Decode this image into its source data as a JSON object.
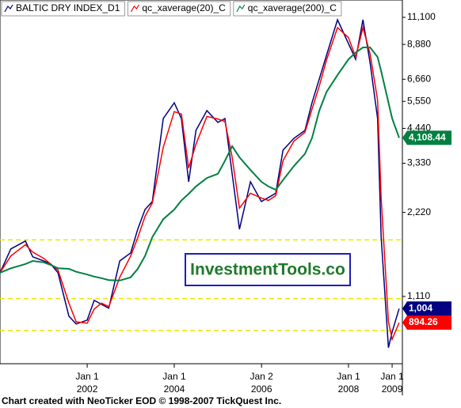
{
  "chart_data": {
    "type": "line",
    "x": [
      "2000-01",
      "2000-04",
      "2000-08",
      "2000-10",
      "2001-01",
      "2001-03",
      "2001-05",
      "2001-08",
      "2001-10",
      "2002-01",
      "2002-03",
      "2002-05",
      "2002-07",
      "2002-10",
      "2003-01",
      "2003-03",
      "2003-05",
      "2003-07",
      "2003-10",
      "2004-01",
      "2004-03",
      "2004-05",
      "2004-07",
      "2004-10",
      "2005-01",
      "2005-03",
      "2005-05",
      "2005-07",
      "2005-10",
      "2006-01",
      "2006-03",
      "2006-05",
      "2006-07",
      "2006-10",
      "2007-01",
      "2007-03",
      "2007-05",
      "2007-07",
      "2007-10",
      "2008-01",
      "2008-03",
      "2008-05",
      "2008-07",
      "2008-09",
      "2008-10",
      "2008-12",
      "2009-01",
      "2009-03"
    ],
    "series": [
      {
        "name": "BALTIC DRY INDEX_D1",
        "color": "#000080",
        "label_color": "#ffffff",
        "values": [
          1350,
          1643,
          1753,
          1539,
          1488,
          1450,
          1350,
          943,
          884,
          913,
          1075,
          1040,
          1007,
          1488,
          1590,
          1932,
          2273,
          2429,
          4818,
          5487,
          4818,
          2858,
          4368,
          5143,
          4665,
          4818,
          3053,
          1932,
          2858,
          2429,
          2510,
          2600,
          3710,
          4093,
          4368,
          5487,
          6674,
          8116,
          10880,
          8950,
          7855,
          10880,
          7608,
          4818,
          1810,
          727,
          828,
          1004
        ],
        "value_labels": [
          null,
          null,
          null,
          null,
          null,
          null,
          null,
          null,
          null,
          null,
          null,
          null,
          null,
          null,
          null,
          null,
          null,
          null,
          null,
          null,
          null,
          null,
          null,
          null,
          null,
          null,
          null,
          null,
          null,
          null,
          null,
          null,
          null,
          null,
          null,
          null,
          null,
          null,
          null,
          null,
          null,
          null,
          null,
          null,
          null,
          null,
          null,
          "1,004"
        ]
      },
      {
        "name": "qc_xaverage(20)_C",
        "color": "#ff0000",
        "label_color": "#ffffff",
        "values": [
          1350,
          1550,
          1700,
          1600,
          1520,
          1450,
          1380,
          1050,
          900,
          890,
          1000,
          1050,
          1020,
          1300,
          1550,
          1800,
          2150,
          2400,
          3800,
          5100,
          5000,
          3200,
          3900,
          4900,
          4800,
          4700,
          3500,
          2300,
          2600,
          2500,
          2450,
          2550,
          3400,
          4000,
          4300,
          5200,
          6300,
          7800,
          10200,
          9400,
          8000,
          10200,
          8200,
          5600,
          2500,
          900,
          780,
          894.26
        ],
        "value_labels": [
          null,
          null,
          null,
          null,
          null,
          null,
          null,
          null,
          null,
          null,
          null,
          null,
          null,
          null,
          null,
          null,
          null,
          null,
          null,
          null,
          null,
          null,
          null,
          null,
          null,
          null,
          null,
          null,
          null,
          null,
          null,
          null,
          null,
          null,
          null,
          null,
          null,
          null,
          null,
          null,
          null,
          null,
          null,
          null,
          null,
          null,
          null,
          "894.26"
        ]
      },
      {
        "name": "qc_xaverage(200)_C",
        "color": "#008040",
        "label_color": "#ffffff",
        "values": [
          1350,
          1400,
          1450,
          1488,
          1470,
          1440,
          1400,
          1394,
          1360,
          1330,
          1307,
          1290,
          1270,
          1265,
          1300,
          1394,
          1550,
          1810,
          2100,
          2273,
          2450,
          2589,
          2750,
          2950,
          3053,
          3400,
          3833,
          3500,
          3153,
          2858,
          2750,
          2677,
          2900,
          3256,
          3600,
          4100,
          5143,
          6000,
          6895,
          7855,
          8300,
          8660,
          8660,
          8000,
          7123,
          5500,
          4818,
          4108.44
        ],
        "value_labels": [
          null,
          null,
          null,
          null,
          null,
          null,
          null,
          null,
          null,
          null,
          null,
          null,
          null,
          null,
          null,
          null,
          null,
          null,
          null,
          null,
          null,
          null,
          null,
          null,
          null,
          null,
          null,
          null,
          null,
          null,
          null,
          null,
          null,
          null,
          null,
          null,
          null,
          null,
          null,
          null,
          null,
          null,
          null,
          null,
          null,
          null,
          null,
          "4,108.44"
        ]
      }
    ],
    "log_y": true,
    "ylim": [
      637,
      12810
    ],
    "yticks": [
      {
        "value": 1110,
        "label": "1,110"
      },
      {
        "value": 2220,
        "label": "2,220"
      },
      {
        "value": 3330,
        "label": "3,330"
      },
      {
        "value": 4440,
        "label": "4,440"
      },
      {
        "value": 5550,
        "label": "5,550"
      },
      {
        "value": 6660,
        "label": "6,660"
      },
      {
        "value": 8880,
        "label": "8,880"
      },
      {
        "value": 11100,
        "label": "11,100"
      }
    ],
    "xlim": [
      "2000-01-01",
      "2009-03-28"
    ],
    "xticks": [
      {
        "value": "2002-01-01",
        "label": "Jan 1\n2002"
      },
      {
        "value": "2004-01-01",
        "label": "Jan 1\n2004"
      },
      {
        "value": "2006-01-02",
        "label": "Jan 2\n2006"
      },
      {
        "value": "2008-01-01",
        "label": "Jan 1\n2008"
      },
      {
        "value": "2009-01-01",
        "label": "Jan 1\n2009"
      }
    ],
    "reference_lines": [
      1770,
      1090,
      837
    ],
    "reference_color": "#e8e800",
    "watermark": "InvestmentTools.co",
    "footer": "Chart created with NeoTicker EOD © 1998-2007 TickQuest Inc."
  }
}
